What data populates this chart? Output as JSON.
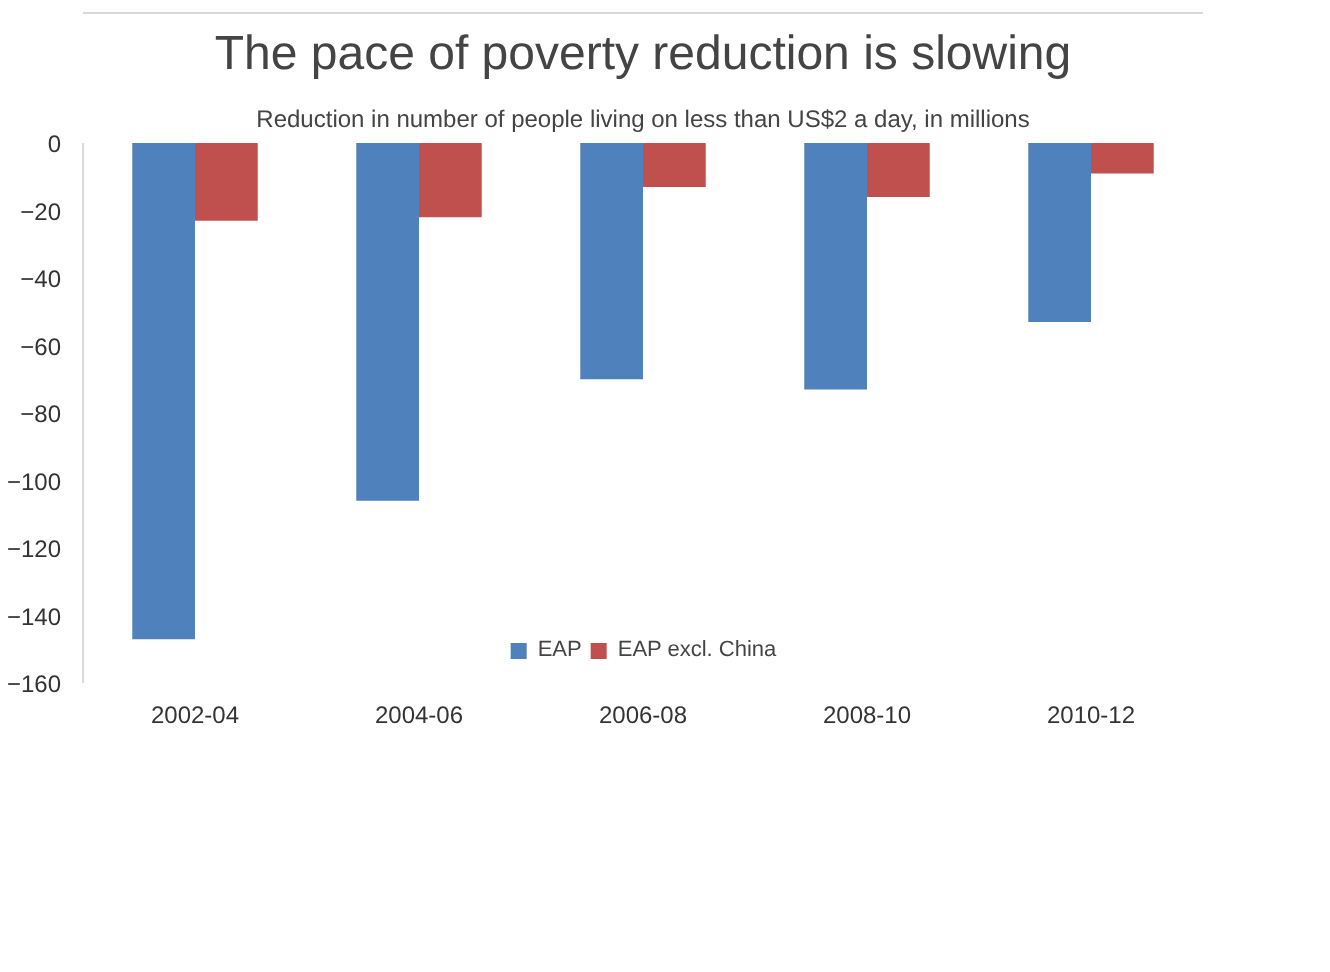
{
  "chart_data": {
    "type": "bar",
    "title": "The pace of poverty reduction is slowing",
    "subtitle": "Reduction in number of people living on less than US$2 a day, in millions",
    "categories": [
      "2002-04",
      "2004-06",
      "2006-08",
      "2008-10",
      "2010-12"
    ],
    "series": [
      {
        "name": "EAP",
        "color": "#4f81bd",
        "values": [
          -147,
          -106,
          -70,
          -73,
          -53
        ]
      },
      {
        "name": "EAP excl. China",
        "color": "#c0504d",
        "values": [
          -23,
          -22,
          -13,
          -16,
          -9
        ]
      }
    ],
    "ylim": [
      -160,
      0
    ],
    "yticks": [
      -160,
      -140,
      -120,
      -100,
      -80,
      -60,
      -40,
      -20,
      0
    ],
    "grid": false,
    "legend": "bottom"
  }
}
